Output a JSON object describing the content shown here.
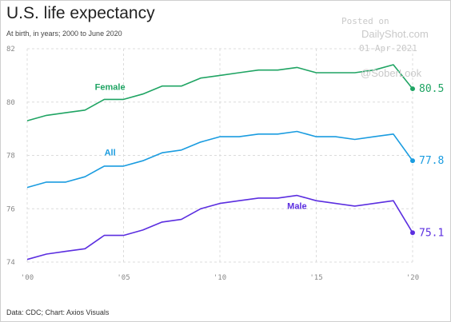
{
  "header": {
    "title": "U.S. life expectancy",
    "subtitle": "At birth, in years; 2000 to June 2020"
  },
  "footer": {
    "source": "Data: CDC; Chart: Axios Visuals"
  },
  "watermark": {
    "line1": "Posted on",
    "line2": "DailyShot.com",
    "line3": "01-Apr-2021",
    "line4": "@SoberLook"
  },
  "chart_data": {
    "type": "line",
    "title": "U.S. life expectancy",
    "subtitle": "At birth, in years; 2000 to June 2020",
    "x": [
      2000,
      2001,
      2002,
      2003,
      2004,
      2005,
      2006,
      2007,
      2008,
      2009,
      2010,
      2011,
      2012,
      2013,
      2014,
      2015,
      2016,
      2017,
      2018,
      2019,
      2020
    ],
    "xticks": [
      2000,
      2005,
      2010,
      2015,
      2020
    ],
    "xtick_labels": [
      "'00",
      "'05",
      "'10",
      "'15",
      "'20"
    ],
    "yticks": [
      74,
      76,
      78,
      80,
      82
    ],
    "ytick_labels": [
      "74",
      "76",
      "78",
      "80",
      "82"
    ],
    "ylim": [
      74,
      82
    ],
    "xlim": [
      2000,
      2020
    ],
    "grid": "horizontal dashed",
    "series": [
      {
        "name": "Female",
        "color": "#1fa463",
        "end_label": "80.5",
        "values": [
          79.3,
          79.5,
          79.6,
          79.7,
          80.1,
          80.1,
          80.3,
          80.6,
          80.6,
          80.9,
          81.0,
          81.1,
          81.2,
          81.2,
          81.3,
          81.1,
          81.1,
          81.1,
          81.2,
          81.4,
          80.5
        ]
      },
      {
        "name": "All",
        "color": "#1a9ce0",
        "end_label": "77.8",
        "values": [
          76.8,
          77.0,
          77.0,
          77.2,
          77.6,
          77.6,
          77.8,
          78.1,
          78.2,
          78.5,
          78.7,
          78.7,
          78.8,
          78.8,
          78.9,
          78.7,
          78.7,
          78.6,
          78.7,
          78.8,
          77.8
        ]
      },
      {
        "name": "Male",
        "color": "#5b2ee0",
        "end_label": "75.1",
        "values": [
          74.1,
          74.3,
          74.4,
          74.5,
          75.0,
          75.0,
          75.2,
          75.5,
          75.6,
          76.0,
          76.2,
          76.3,
          76.4,
          76.4,
          76.5,
          76.3,
          76.2,
          76.1,
          76.2,
          76.3,
          75.1
        ]
      }
    ]
  }
}
